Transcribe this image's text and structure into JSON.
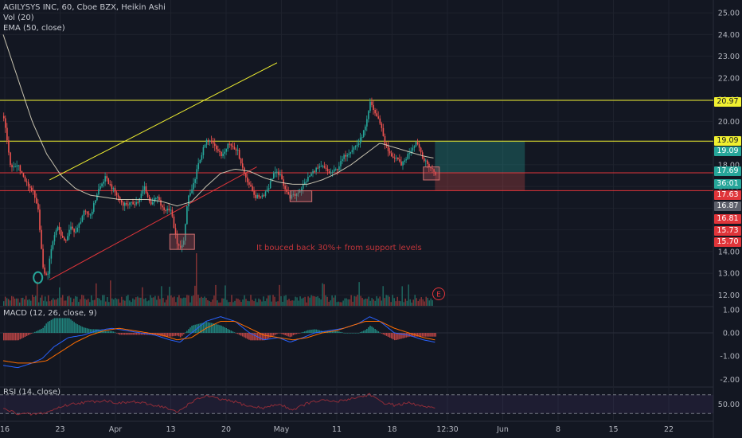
{
  "legend": {
    "title": "AGILYSYS INC, 60, Cboe BZX, Heikin Ashi",
    "vol": "Vol (20)",
    "ema": "EMA (50, close)",
    "macd": "MACD (12, 26, close, 9)",
    "rsi": "RSI (14, close)"
  },
  "annotation": "It bouced back 30%+ from support levels",
  "event_marker": "E",
  "colors": {
    "background": "#131722",
    "up": "#26a69a",
    "down": "#ef5350",
    "resistance": "#f0f030",
    "support": "#e0353a",
    "ema": "#e8e0c8",
    "macd": "#2962ff",
    "signal": "#ff6d00",
    "rsi": "#8e2c38",
    "grid": "#1e222d"
  },
  "chart_data": [
    {
      "type": "candlestick",
      "title": "AGILYSYS INC, 60, Cboe BZX, Heikin Ashi",
      "x_ticks": [
        "16",
        "23",
        "Apr",
        "13",
        "20",
        "May",
        "11",
        "18",
        "12:30",
        "Jun",
        "8",
        "15",
        "22"
      ],
      "ylim": [
        11.5,
        25.3
      ],
      "y_ticks": [
        "12.00",
        "13.00",
        "14.00",
        "15.00",
        "16.00",
        "17.00",
        "18.00",
        "19.00",
        "20.00",
        "21.00",
        "22.00",
        "23.00",
        "24.00",
        "25.00"
      ],
      "price_labels": [
        {
          "value": "20.97",
          "type": "resistance"
        },
        {
          "value": "19.09",
          "type": "resistance"
        },
        {
          "value": "19.09",
          "type": "price-up"
        },
        {
          "value": "17.69",
          "type": "price-up"
        },
        {
          "value": "36:01",
          "type": "countdown"
        },
        {
          "value": "17.63",
          "type": "support"
        },
        {
          "value": "16.87",
          "type": "neutral"
        },
        {
          "value": "16.81",
          "type": "support"
        },
        {
          "value": "15.73",
          "type": "support"
        },
        {
          "value": "15.70",
          "type": "support"
        }
      ],
      "horizontal_lines": [
        20.97,
        19.09,
        17.63,
        16.81
      ],
      "trend_lines": [
        {
          "name": "resistance",
          "from": [
            3.2,
            17.3
          ],
          "to": [
            18.9,
            22.7
          ]
        },
        {
          "name": "support",
          "from": [
            3.2,
            12.7
          ],
          "to": [
            17.5,
            17.9
          ]
        }
      ],
      "candle_anchors": [
        [
          0.0,
          20.2
        ],
        [
          0.5,
          17.8
        ],
        [
          1.0,
          18.0
        ],
        [
          1.5,
          17.2
        ],
        [
          2.0,
          16.8
        ],
        [
          2.4,
          15.8
        ],
        [
          2.7,
          13.2
        ],
        [
          3.0,
          12.8
        ],
        [
          3.3,
          14.3
        ],
        [
          3.7,
          15.2
        ],
        [
          4.2,
          14.4
        ],
        [
          4.6,
          15.1
        ],
        [
          5.0,
          14.9
        ],
        [
          5.5,
          15.8
        ],
        [
          6.0,
          15.7
        ],
        [
          6.5,
          16.8
        ],
        [
          7.0,
          17.4
        ],
        [
          7.6,
          16.8
        ],
        [
          8.2,
          16.2
        ],
        [
          8.8,
          16.2
        ],
        [
          9.3,
          16.3
        ],
        [
          9.7,
          17.0
        ],
        [
          10.1,
          16.2
        ],
        [
          10.6,
          16.5
        ],
        [
          11.0,
          15.9
        ],
        [
          11.5,
          16.0
        ],
        [
          12.0,
          14.2
        ],
        [
          12.4,
          14.3
        ],
        [
          12.7,
          16.5
        ],
        [
          13.0,
          16.8
        ],
        [
          13.3,
          17.7
        ],
        [
          13.7,
          18.6
        ],
        [
          14.0,
          19.1
        ],
        [
          14.5,
          19.0
        ],
        [
          15.0,
          18.4
        ],
        [
          15.5,
          19.0
        ],
        [
          16.1,
          18.7
        ],
        [
          16.6,
          17.6
        ],
        [
          17.0,
          17.0
        ],
        [
          17.4,
          16.5
        ],
        [
          17.9,
          16.6
        ],
        [
          18.3,
          17.0
        ],
        [
          18.6,
          17.6
        ],
        [
          19.0,
          17.6
        ],
        [
          19.3,
          17.1
        ],
        [
          19.7,
          16.5
        ],
        [
          20.1,
          16.6
        ],
        [
          20.5,
          16.9
        ],
        [
          21.0,
          17.4
        ],
        [
          21.5,
          17.8
        ],
        [
          22.0,
          17.9
        ],
        [
          22.5,
          17.6
        ],
        [
          23.0,
          17.8
        ],
        [
          23.5,
          18.4
        ],
        [
          24.0,
          18.7
        ],
        [
          24.5,
          19.0
        ],
        [
          25.0,
          19.8
        ],
        [
          25.3,
          20.9
        ],
        [
          25.6,
          20.4
        ],
        [
          26.0,
          19.9
        ],
        [
          26.3,
          19.0
        ],
        [
          26.6,
          18.5
        ],
        [
          27.0,
          18.3
        ],
        [
          27.5,
          18.0
        ],
        [
          28.0,
          18.6
        ],
        [
          28.5,
          19.1
        ],
        [
          29.0,
          18.2
        ],
        [
          29.4,
          17.9
        ],
        [
          29.8,
          17.6
        ]
      ],
      "ema_anchors": [
        [
          0.0,
          24.0
        ],
        [
          1.0,
          22.0
        ],
        [
          2.0,
          20.0
        ],
        [
          3.0,
          18.5
        ],
        [
          4.0,
          17.5
        ],
        [
          5.0,
          16.9
        ],
        [
          6.0,
          16.6
        ],
        [
          7.0,
          16.5
        ],
        [
          8.0,
          16.4
        ],
        [
          9.0,
          16.4
        ],
        [
          10.0,
          16.4
        ],
        [
          11.0,
          16.3
        ],
        [
          12.0,
          16.1
        ],
        [
          13.0,
          16.3
        ],
        [
          14.0,
          17.0
        ],
        [
          15.0,
          17.6
        ],
        [
          16.0,
          17.8
        ],
        [
          17.0,
          17.7
        ],
        [
          18.0,
          17.4
        ],
        [
          19.0,
          17.2
        ],
        [
          20.0,
          17.1
        ],
        [
          21.0,
          17.1
        ],
        [
          22.0,
          17.3
        ],
        [
          23.0,
          17.6
        ],
        [
          24.0,
          18.0
        ],
        [
          25.0,
          18.5
        ],
        [
          26.0,
          19.0
        ],
        [
          27.0,
          18.8
        ],
        [
          28.0,
          18.6
        ],
        [
          29.0,
          18.4
        ],
        [
          29.8,
          18.3
        ]
      ],
      "position_box": {
        "x_start": 29.8,
        "x_end": 36.0,
        "target": 19.09,
        "entry": 17.63,
        "stop": 16.81
      },
      "highlight_boxes": [
        {
          "x_start": 11.5,
          "x_end": 13.2,
          "y_low": 14.1,
          "y_high": 14.8
        },
        {
          "x_start": 19.8,
          "x_end": 21.3,
          "y_low": 16.3,
          "y_high": 16.8
        },
        {
          "x_start": 29.0,
          "x_end": 30.1,
          "y_low": 17.3,
          "y_high": 17.9
        }
      ],
      "circle_marker": {
        "x": 2.4,
        "y": 12.8
      }
    },
    {
      "type": "bar",
      "title": "MACD (12, 26, close, 9)",
      "ylim": [
        -2.3,
        1.1
      ],
      "y_ticks": [
        "1.00",
        "0.00",
        "-1.00",
        "-2.00"
      ],
      "macd_anchors": [
        [
          0,
          -1.4
        ],
        [
          1,
          -1.5
        ],
        [
          2,
          -1.3
        ],
        [
          2.7,
          -1.1
        ],
        [
          3.5,
          -0.6
        ],
        [
          4.5,
          -0.2
        ],
        [
          5.5,
          -0.1
        ],
        [
          6.5,
          0.1
        ],
        [
          7.5,
          0.2
        ],
        [
          8.5,
          0.1
        ],
        [
          9.5,
          0.0
        ],
        [
          10.5,
          -0.1
        ],
        [
          11.5,
          -0.3
        ],
        [
          12.2,
          -0.4
        ],
        [
          13,
          0.0
        ],
        [
          14,
          0.5
        ],
        [
          15,
          0.7
        ],
        [
          16,
          0.5
        ],
        [
          17,
          0.0
        ],
        [
          18,
          -0.3
        ],
        [
          19,
          -0.2
        ],
        [
          19.8,
          -0.4
        ],
        [
          20.7,
          -0.2
        ],
        [
          21.5,
          0.0
        ],
        [
          22.5,
          0.1
        ],
        [
          23.5,
          0.2
        ],
        [
          24.5,
          0.4
        ],
        [
          25.3,
          0.7
        ],
        [
          26,
          0.5
        ],
        [
          27,
          0.0
        ],
        [
          28,
          -0.1
        ],
        [
          29,
          -0.3
        ],
        [
          29.8,
          -0.4
        ]
      ],
      "signal_anchors": [
        [
          0,
          -1.2
        ],
        [
          1,
          -1.3
        ],
        [
          2,
          -1.3
        ],
        [
          3,
          -1.2
        ],
        [
          4,
          -0.8
        ],
        [
          5,
          -0.4
        ],
        [
          6,
          -0.1
        ],
        [
          7,
          0.1
        ],
        [
          8,
          0.2
        ],
        [
          9,
          0.1
        ],
        [
          10,
          0.0
        ],
        [
          11,
          -0.1
        ],
        [
          12,
          -0.3
        ],
        [
          13,
          -0.2
        ],
        [
          14,
          0.2
        ],
        [
          15,
          0.5
        ],
        [
          16,
          0.5
        ],
        [
          17,
          0.2
        ],
        [
          18,
          -0.1
        ],
        [
          19,
          -0.2
        ],
        [
          20,
          -0.3
        ],
        [
          21,
          -0.2
        ],
        [
          22,
          0.0
        ],
        [
          23,
          0.1
        ],
        [
          24,
          0.3
        ],
        [
          25,
          0.5
        ],
        [
          26,
          0.5
        ],
        [
          27,
          0.2
        ],
        [
          28,
          0.0
        ],
        [
          29,
          -0.2
        ],
        [
          29.8,
          -0.3
        ]
      ]
    },
    {
      "type": "line",
      "title": "RSI (14, close)",
      "ylim": [
        15,
        85
      ],
      "y_ticks": [
        "50.00"
      ],
      "band": [
        30,
        70
      ],
      "rsi_anchors": [
        [
          0,
          40
        ],
        [
          1,
          30
        ],
        [
          2,
          28
        ],
        [
          3,
          32
        ],
        [
          4,
          45
        ],
        [
          5,
          52
        ],
        [
          6,
          55
        ],
        [
          7,
          58
        ],
        [
          8,
          52
        ],
        [
          9,
          55
        ],
        [
          10,
          50
        ],
        [
          11,
          45
        ],
        [
          12,
          32
        ],
        [
          13,
          55
        ],
        [
          14,
          68
        ],
        [
          15,
          60
        ],
        [
          16,
          55
        ],
        [
          17,
          45
        ],
        [
          18,
          42
        ],
        [
          19,
          50
        ],
        [
          20,
          38
        ],
        [
          21,
          52
        ],
        [
          22,
          58
        ],
        [
          23,
          55
        ],
        [
          24,
          62
        ],
        [
          25,
          68
        ],
        [
          25.3,
          72
        ],
        [
          26,
          55
        ],
        [
          27,
          48
        ],
        [
          28,
          52
        ],
        [
          29,
          45
        ],
        [
          29.8,
          40
        ]
      ]
    }
  ]
}
